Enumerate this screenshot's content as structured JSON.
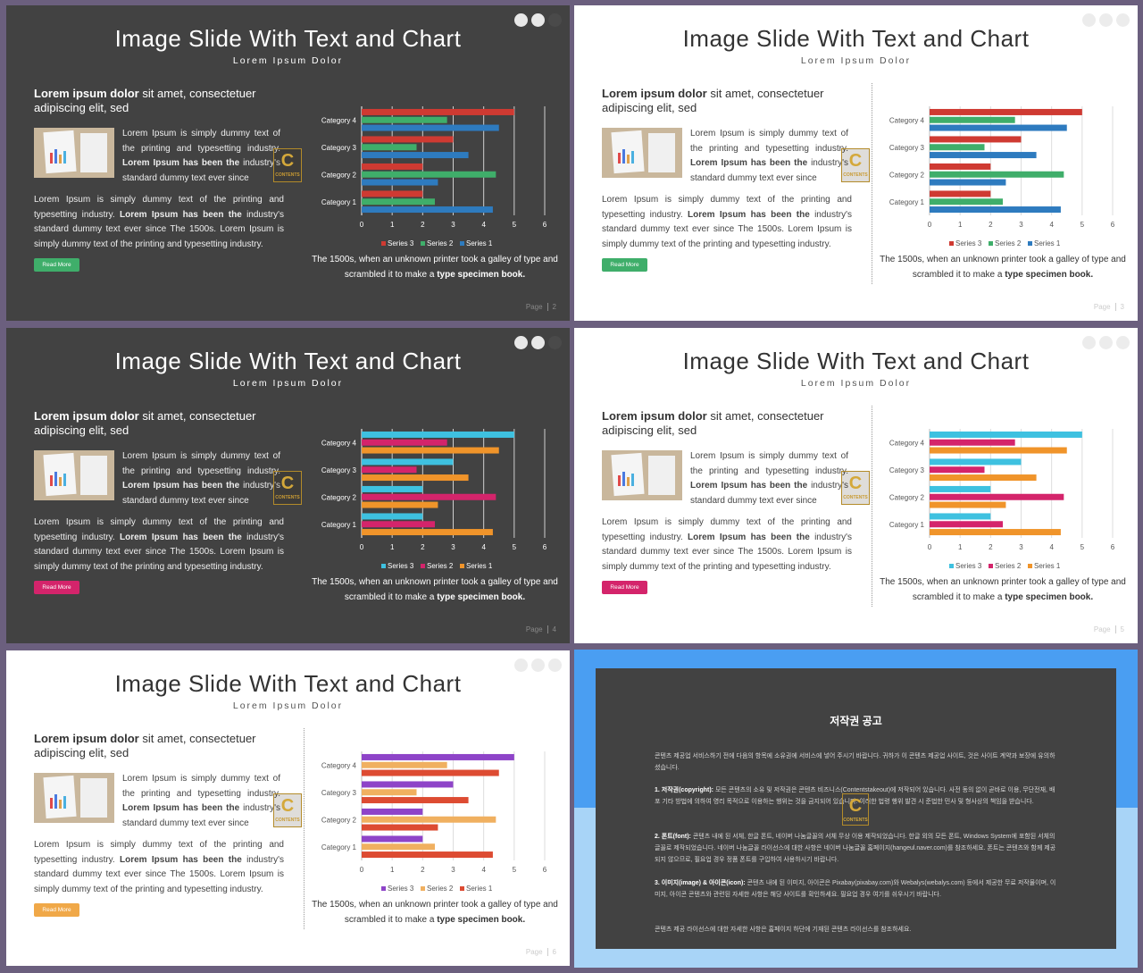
{
  "slides": [
    {
      "theme": "dark",
      "title": "Image Slide With Text and Chart",
      "subtitle": "Lorem Ipsum Dolor",
      "lead_bold": "Lorem ipsum dolor",
      "lead_rest": " sit amet, consectetuer adipiscing elit, sed",
      "side_1": "Lorem Ipsum is simply dummy text of the printing and typesetting industry.",
      "side_bold": "Lorem Ipsum has been the",
      "side_2": " industry's standard dummy text ever since",
      "body_1": "Lorem Ipsum is simply dummy text of the printing and typesetting industry. ",
      "body_bold": "Lorem Ipsum has been the",
      "body_2": " industry's standard dummy text ever since The 1500s. Lorem Ipsum is simply dummy text of the printing and typesetting industry.",
      "button_label": "Read More",
      "button_color": "#3fae6a",
      "caption_1": "The 1500s, when an unknown printer took a galley of type and scrambled it to make a ",
      "caption_bold": "type specimen book.",
      "page_label": "Page",
      "page_number": "2"
    },
    {
      "theme": "light",
      "title": "Image Slide With Text and Chart",
      "subtitle": "Lorem Ipsum Dolor",
      "lead_bold": "Lorem ipsum dolor",
      "lead_rest": " sit amet, consectetuer adipiscing elit, sed",
      "side_1": "Lorem Ipsum is simply dummy text of the printing and typesetting industry.",
      "side_bold": "Lorem Ipsum has been the",
      "side_2": " industry's standard dummy text ever since",
      "body_1": "Lorem Ipsum is simply dummy text of the printing and typesetting industry. ",
      "body_bold": "Lorem Ipsum has been the",
      "body_2": " industry's standard dummy text ever since The 1500s. Lorem Ipsum is simply dummy text of the printing and typesetting industry.",
      "button_label": "Read More",
      "button_color": "#3fae6a",
      "caption_1": "The 1500s, when an unknown printer took a galley of type and scrambled it to make a ",
      "caption_bold": "type specimen book.",
      "page_label": "Page",
      "page_number": "3"
    },
    {
      "theme": "dark",
      "title": "Image Slide With Text and Chart",
      "subtitle": "Lorem Ipsum Dolor",
      "lead_bold": "Lorem ipsum dolor",
      "lead_rest": " sit amet, consectetuer adipiscing elit, sed",
      "side_1": "Lorem Ipsum is simply dummy text of the printing and typesetting industry.",
      "side_bold": "Lorem Ipsum has been the",
      "side_2": " industry's standard dummy text ever since",
      "body_1": "Lorem Ipsum is simply dummy text of the printing and typesetting industry. ",
      "body_bold": "Lorem Ipsum has been the",
      "body_2": " industry's standard dummy text ever since The 1500s. Lorem Ipsum is simply dummy text of the printing and typesetting industry.",
      "button_label": "Read More",
      "button_color": "#d4246b",
      "caption_1": "The 1500s, when an unknown printer took a galley of type and scrambled it to make a ",
      "caption_bold": "type specimen book.",
      "page_label": "Page",
      "page_number": "4"
    },
    {
      "theme": "light",
      "title": "Image Slide With Text and Chart",
      "subtitle": "Lorem Ipsum Dolor",
      "lead_bold": "Lorem ipsum dolor",
      "lead_rest": " sit amet, consectetuer adipiscing elit, sed",
      "side_1": "Lorem Ipsum is simply dummy text of the printing and typesetting industry.",
      "side_bold": "Lorem Ipsum has been the",
      "side_2": " industry's standard dummy text ever since",
      "body_1": "Lorem Ipsum is simply dummy text of the printing and typesetting industry. ",
      "body_bold": "Lorem Ipsum has been the",
      "body_2": " industry's standard dummy text ever since The 1500s. Lorem Ipsum is simply dummy text of the printing and typesetting industry.",
      "button_label": "Read More",
      "button_color": "#d4246b",
      "caption_1": "The 1500s, when an unknown printer took a galley of type and scrambled it to make a ",
      "caption_bold": "type specimen book.",
      "page_label": "Page",
      "page_number": "5"
    },
    {
      "theme": "light",
      "title": "Image Slide With Text and Chart",
      "subtitle": "Lorem Ipsum Dolor",
      "lead_bold": "Lorem ipsum dolor",
      "lead_rest": " sit amet, consectetuer adipiscing elit, sed",
      "side_1": "Lorem Ipsum is simply dummy text of the printing and typesetting industry.",
      "side_bold": "Lorem Ipsum has been the",
      "side_2": " industry's standard dummy text ever since",
      "body_1": "Lorem Ipsum is simply dummy text of the printing and typesetting industry. ",
      "body_bold": "Lorem Ipsum has been the",
      "body_2": " industry's standard dummy text ever since The 1500s. Lorem Ipsum is simply dummy text of the printing and typesetting industry.",
      "button_label": "Read More",
      "button_color": "#f0a848",
      "caption_1": "The 1500s, when an unknown printer took a galley of type and scrambled it to make a ",
      "caption_bold": "type specimen book.",
      "page_label": "Page",
      "page_number": "6"
    }
  ],
  "logo": {
    "letter": "C",
    "caption": "CONTENTS"
  },
  "chart_data": [
    {
      "type": "bar",
      "orientation": "horizontal",
      "categories": [
        "Category 1",
        "Category 2",
        "Category 3",
        "Category 4"
      ],
      "series": [
        {
          "name": "Series 1",
          "values": [
            4.3,
            2.5,
            3.5,
            4.5
          ],
          "color": "#2e7bbf"
        },
        {
          "name": "Series 2",
          "values": [
            2.4,
            4.4,
            1.8,
            2.8
          ],
          "color": "#3fae6a"
        },
        {
          "name": "Series 3",
          "values": [
            2,
            2,
            3,
            5
          ],
          "color": "#cf3a32"
        }
      ],
      "xlim": [
        0,
        6
      ],
      "xticks": [
        "0",
        "1",
        "2",
        "3",
        "4",
        "5",
        "6"
      ],
      "legend": "bottom"
    },
    {
      "type": "bar",
      "orientation": "horizontal",
      "categories": [
        "Category 1",
        "Category 2",
        "Category 3",
        "Category 4"
      ],
      "series": [
        {
          "name": "Series 1",
          "values": [
            4.3,
            2.5,
            3.5,
            4.5
          ],
          "color": "#2e7bbf"
        },
        {
          "name": "Series 2",
          "values": [
            2.4,
            4.4,
            1.8,
            2.8
          ],
          "color": "#3fae6a"
        },
        {
          "name": "Series 3",
          "values": [
            2,
            2,
            3,
            5
          ],
          "color": "#cf3a32"
        }
      ],
      "xlim": [
        0,
        6
      ],
      "xticks": [
        "0",
        "1",
        "2",
        "3",
        "4",
        "5",
        "6"
      ],
      "legend": "bottom"
    },
    {
      "type": "bar",
      "orientation": "horizontal",
      "categories": [
        "Category 1",
        "Category 2",
        "Category 3",
        "Category 4"
      ],
      "series": [
        {
          "name": "Series 1",
          "values": [
            4.3,
            2.5,
            3.5,
            4.5
          ],
          "color": "#f0942a"
        },
        {
          "name": "Series 2",
          "values": [
            2.4,
            4.4,
            1.8,
            2.8
          ],
          "color": "#d4246b"
        },
        {
          "name": "Series 3",
          "values": [
            2,
            2,
            3,
            5
          ],
          "color": "#3ec1e0"
        }
      ],
      "xlim": [
        0,
        6
      ],
      "xticks": [
        "0",
        "1",
        "2",
        "3",
        "4",
        "5",
        "6"
      ],
      "legend": "bottom"
    },
    {
      "type": "bar",
      "orientation": "horizontal",
      "categories": [
        "Category 1",
        "Category 2",
        "Category 3",
        "Category 4"
      ],
      "series": [
        {
          "name": "Series 1",
          "values": [
            4.3,
            2.5,
            3.5,
            4.5
          ],
          "color": "#f0942a"
        },
        {
          "name": "Series 2",
          "values": [
            2.4,
            4.4,
            1.8,
            2.8
          ],
          "color": "#d4246b"
        },
        {
          "name": "Series 3",
          "values": [
            2,
            2,
            3,
            5
          ],
          "color": "#3ec1e0"
        }
      ],
      "xlim": [
        0,
        6
      ],
      "xticks": [
        "0",
        "1",
        "2",
        "3",
        "4",
        "5",
        "6"
      ],
      "legend": "bottom"
    },
    {
      "type": "bar",
      "orientation": "horizontal",
      "categories": [
        "Category 1",
        "Category 2",
        "Category 3",
        "Category 4"
      ],
      "series": [
        {
          "name": "Series 1",
          "values": [
            4.3,
            2.5,
            3.5,
            4.5
          ],
          "color": "#dd4b32"
        },
        {
          "name": "Series 2",
          "values": [
            2.4,
            4.4,
            1.8,
            2.8
          ],
          "color": "#f0b060"
        },
        {
          "name": "Series 3",
          "values": [
            2,
            2,
            3,
            5
          ],
          "color": "#8e44c8"
        }
      ],
      "xlim": [
        0,
        6
      ],
      "xticks": [
        "0",
        "1",
        "2",
        "3",
        "4",
        "5",
        "6"
      ],
      "legend": "bottom"
    }
  ],
  "notice": {
    "title": "저작권 공고",
    "paragraphs": [
      {
        "bold": "",
        "text": "콘텐츠 제공업 서비스하기 전에 다음의 항목에 소유권에 서비스에 넣어 주시기 바랍니다. 귀하가 이 콘텐츠 제공업 사이트, 것은 사이트 계약과 보장에 유의하셨습니다."
      },
      {
        "bold": "1. 저작권(copyright): ",
        "text": "모든 콘텐츠의 소유 및 저작권은 콘텐츠 비즈니스(Contentstakeout)에 저작되어 있습니다. 사전 동의 없이 곧바로 이용, 무단전재, 배포 기타 방법에 의하여 영리 목적으로 이용하는 행위는 것을 금지되어 있습니다. 이러한 법령 행위 발견 시 준법한 민사 및 형사상의 책임을 받습니다."
      },
      {
        "bold": "2. 폰트(font): ",
        "text": "콘텐츠 내에 된 서체, 한글 폰트, 네이버 나눔글꼴의 서체 무상 이용 제작되었습니다. 한글 외의 모든 폰트, Windows System에 포함된 서체의 글꼴로 제작되었습니다. 네이버 나눔글꼴 라이선스에 대한 사항은 네이버 나눔글꼴 홈페이지(hangeul.naver.com)를 참조하세요. 폰트는 콘텐츠와 함께 제공되지 않으므로, 필요업 경우 정품 폰트를 구입하여 사용하시기 바랍니다."
      },
      {
        "bold": "3. 이미지(image) & 아이콘(icon): ",
        "text": "콘텐츠 내에 된 이미지, 아이콘은 Pixabay(pixabay.com)와 Webalys(webalys.com) 등에서 제공한 무료 저작물이며, 이미지, 아이콘 콘텐츠와 관련된 자세한 사항은 해당 사이트를 확인하세요. 필요업 경우 여기를 쉬우시기 바랍니다."
      },
      {
        "bold": "",
        "text": "콘텐츠 제공 라이선스에 대한 자세한 사항은 홈페이지 하단에 기재된 콘텐츠 라이선스를 참조하세요."
      }
    ]
  }
}
